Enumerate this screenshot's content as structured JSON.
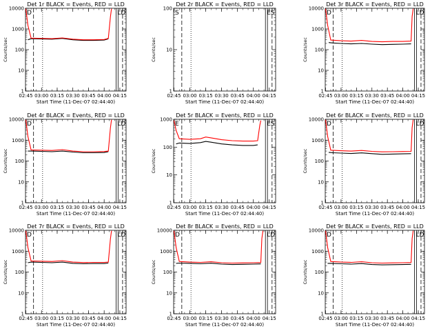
{
  "colors": {
    "events": "#000000",
    "lld": "#ff0000",
    "axes": "#000000",
    "background": "#ffffff"
  },
  "chart_data": [
    {
      "type": "line",
      "title": "Det 1r BLACK = Events, RED = LLD",
      "xlabel": "Start Time (11-Dec-07 02:44:40)",
      "ylabel": "Counts/sec",
      "xticks": [
        "02:45",
        "03:00",
        "03:15",
        "03:30",
        "03:45",
        "04:00",
        "04:15"
      ],
      "yticks": [
        "1",
        "10",
        "100",
        "1000",
        "10000"
      ],
      "y_log": true,
      "ylim": [
        1,
        10000
      ],
      "markers": {
        "left": "D",
        "right": "LD"
      },
      "series": [
        {
          "color": "#000000",
          "x": [
            "02:47",
            "02:50",
            "03:00",
            "03:10",
            "03:20",
            "03:30",
            "03:40",
            "03:50",
            "04:00",
            "04:04"
          ],
          "y": [
            300,
            340,
            330,
            320,
            350,
            300,
            280,
            280,
            290,
            330
          ]
        },
        {
          "color": "#ff0000",
          "x": [
            "02:45",
            "02:47",
            "02:50",
            "03:00",
            "03:10",
            "03:20",
            "03:30",
            "03:40",
            "03:50",
            "04:00",
            "04:04",
            "04:06",
            "04:07"
          ],
          "y": [
            9500,
            1500,
            360,
            350,
            340,
            370,
            320,
            300,
            300,
            310,
            350,
            4000,
            9500
          ]
        }
      ]
    },
    {
      "type": "line",
      "title": "Det 2r BLACK = Events, RED = LLD",
      "xlabel": "Start Time (11-Dec-07 02:44:40)",
      "ylabel": "Counts/sec",
      "xticks": [
        "02:45",
        "03:00",
        "03:15",
        "03:30",
        "03:45",
        "04:00",
        "04:15"
      ],
      "yticks": [
        "1",
        "10",
        "100"
      ],
      "y_log": true,
      "ylim": [
        1,
        100
      ],
      "markers": {
        "left": "S",
        "right": "ES"
      },
      "series": []
    },
    {
      "type": "line",
      "title": "Det 3r BLACK = Events, RED = LLD",
      "xlabel": "Start Time (11-Dec-07 02:44:40)",
      "ylabel": "Counts/sec",
      "xticks": [
        "02:45",
        "03:00",
        "03:15",
        "03:30",
        "03:45",
        "04:00",
        "04:15"
      ],
      "yticks": [
        "1",
        "10",
        "100",
        "1000",
        "10000"
      ],
      "y_log": true,
      "ylim": [
        1,
        10000
      ],
      "markers": {
        "left": "D",
        "right": "LD"
      },
      "series": [
        {
          "color": "#000000",
          "x": [
            "02:48",
            "02:52",
            "03:00",
            "03:10",
            "03:20",
            "03:30",
            "03:40",
            "03:50",
            "04:00",
            "04:08"
          ],
          "y": [
            220,
            210,
            200,
            190,
            200,
            185,
            175,
            180,
            185,
            190
          ]
        },
        {
          "color": "#ff0000",
          "x": [
            "02:45",
            "02:47",
            "02:50",
            "03:00",
            "03:10",
            "03:20",
            "03:30",
            "03:40",
            "03:50",
            "04:00",
            "04:08",
            "04:09",
            "04:10"
          ],
          "y": [
            9500,
            1500,
            290,
            270,
            260,
            280,
            250,
            240,
            250,
            250,
            260,
            4000,
            9500
          ]
        }
      ]
    },
    {
      "type": "line",
      "title": "Det 4r BLACK = Events, RED = LLD",
      "xlabel": "Start Time (11-Dec-07 02:44:40)",
      "ylabel": "Counts/sec",
      "xticks": [
        "02:45",
        "03:00",
        "03:15",
        "03:30",
        "03:45",
        "04:00",
        "04:15"
      ],
      "yticks": [
        "1",
        "10",
        "100",
        "1000",
        "10000"
      ],
      "y_log": true,
      "ylim": [
        1,
        10000
      ],
      "markers": {
        "left": "D",
        "right": "LD"
      },
      "series": [
        {
          "color": "#000000",
          "x": [
            "02:47",
            "02:50",
            "03:00",
            "03:10",
            "03:20",
            "03:30",
            "03:40",
            "03:50",
            "04:00",
            "04:04"
          ],
          "y": [
            300,
            300,
            290,
            280,
            300,
            270,
            250,
            250,
            255,
            280
          ]
        },
        {
          "color": "#ff0000",
          "x": [
            "02:45",
            "02:47",
            "02:50",
            "03:00",
            "03:10",
            "03:20",
            "03:30",
            "03:40",
            "03:50",
            "04:00",
            "04:04",
            "04:06",
            "04:07"
          ],
          "y": [
            9500,
            1500,
            340,
            330,
            320,
            350,
            300,
            280,
            280,
            285,
            300,
            4000,
            9500
          ]
        }
      ]
    },
    {
      "type": "line",
      "title": "Det 5r BLACK = Events, RED = LLD",
      "xlabel": "Start Time (11-Dec-07 02:44:40)",
      "ylabel": "Counts/sec",
      "xticks": [
        "02:45",
        "03:00",
        "03:15",
        "03:30",
        "03:45",
        "04:00",
        "04:15"
      ],
      "yticks": [
        "1",
        "10",
        "100",
        "1000"
      ],
      "y_log": true,
      "ylim": [
        1,
        1000
      ],
      "markers": {
        "left": "E",
        "right": "ES"
      },
      "series": [
        {
          "color": "#000000",
          "x": [
            "02:47",
            "02:50",
            "03:00",
            "03:10",
            "03:15",
            "03:20",
            "03:30",
            "03:40",
            "03:50",
            "04:00",
            "04:04"
          ],
          "y": [
            130,
            140,
            135,
            145,
            160,
            150,
            130,
            120,
            115,
            115,
            120
          ]
        },
        {
          "color": "#ff0000",
          "x": [
            "02:45",
            "02:47",
            "02:50",
            "03:00",
            "03:10",
            "03:15",
            "03:20",
            "03:30",
            "03:40",
            "03:50",
            "04:00",
            "04:04",
            "04:06",
            "04:07"
          ],
          "y": [
            900,
            400,
            200,
            190,
            200,
            230,
            215,
            185,
            170,
            165,
            165,
            170,
            600,
            900
          ]
        }
      ]
    },
    {
      "type": "line",
      "title": "Det 6r BLACK = Events, RED = LLD",
      "xlabel": "Start Time (11-Dec-07 02:44:40)",
      "ylabel": "Counts/sec",
      "xticks": [
        "02:45",
        "03:00",
        "03:15",
        "03:30",
        "03:45",
        "04:00",
        "04:15"
      ],
      "yticks": [
        "1",
        "10",
        "100",
        "1000",
        "10000"
      ],
      "y_log": true,
      "ylim": [
        1,
        10000
      ],
      "markers": {
        "left": "D",
        "right": "LD"
      },
      "series": [
        {
          "color": "#000000",
          "x": [
            "02:48",
            "02:52",
            "03:00",
            "03:10",
            "03:20",
            "03:30",
            "03:40",
            "03:50",
            "04:00",
            "04:08"
          ],
          "y": [
            260,
            250,
            240,
            230,
            245,
            225,
            210,
            215,
            220,
            225
          ]
        },
        {
          "color": "#ff0000",
          "x": [
            "02:45",
            "02:47",
            "02:50",
            "03:00",
            "03:10",
            "03:20",
            "03:30",
            "03:40",
            "03:50",
            "04:00",
            "04:08",
            "04:09",
            "04:10"
          ],
          "y": [
            9500,
            1500,
            330,
            310,
            300,
            320,
            290,
            275,
            280,
            285,
            290,
            4000,
            9500
          ]
        }
      ]
    },
    {
      "type": "line",
      "title": "Det 7r BLACK = Events, RED = LLD",
      "xlabel": "Start Time (11-Dec-07 02:44:40)",
      "ylabel": "Counts/sec",
      "xticks": [
        "02:45",
        "03:00",
        "03:15",
        "03:30",
        "03:45",
        "04:00",
        "04:15"
      ],
      "yticks": [
        "1",
        "10",
        "100",
        "1000",
        "10000"
      ],
      "y_log": true,
      "ylim": [
        1,
        10000
      ],
      "markers": {
        "left": "D",
        "right": "LD"
      },
      "series": [
        {
          "color": "#000000",
          "x": [
            "02:47",
            "02:50",
            "03:00",
            "03:10",
            "03:20",
            "03:30",
            "03:40",
            "03:50",
            "04:00",
            "04:04"
          ],
          "y": [
            280,
            300,
            290,
            280,
            300,
            260,
            250,
            255,
            255,
            270
          ]
        },
        {
          "color": "#ff0000",
          "x": [
            "02:45",
            "02:47",
            "02:50",
            "03:00",
            "03:10",
            "03:20",
            "03:30",
            "03:40",
            "03:50",
            "04:00",
            "04:04",
            "04:06",
            "04:07"
          ],
          "y": [
            9500,
            1500,
            340,
            330,
            320,
            350,
            300,
            285,
            290,
            290,
            300,
            4000,
            9500
          ]
        }
      ]
    },
    {
      "type": "line",
      "title": "Det 8r BLACK = Events, RED = LLD",
      "xlabel": "Start Time (11-Dec-07 02:44:40)",
      "ylabel": "Counts/sec",
      "xticks": [
        "02:45",
        "03:00",
        "03:15",
        "03:30",
        "03:45",
        "04:00",
        "04:15"
      ],
      "yticks": [
        "1",
        "10",
        "100",
        "1000",
        "10000"
      ],
      "y_log": true,
      "ylim": [
        1,
        10000
      ],
      "markers": {
        "left": "D",
        "right": "LD"
      },
      "series": [
        {
          "color": "#000000",
          "x": [
            "02:47",
            "02:50",
            "03:00",
            "03:10",
            "03:20",
            "03:30",
            "03:40",
            "03:50",
            "04:00",
            "04:07"
          ],
          "y": [
            260,
            270,
            260,
            250,
            265,
            240,
            230,
            235,
            240,
            245
          ]
        },
        {
          "color": "#ff0000",
          "x": [
            "02:45",
            "02:47",
            "02:50",
            "03:00",
            "03:10",
            "03:20",
            "03:30",
            "03:40",
            "03:50",
            "04:00",
            "04:07",
            "04:08",
            "04:09"
          ],
          "y": [
            9500,
            1500,
            320,
            300,
            290,
            310,
            280,
            270,
            275,
            280,
            285,
            4000,
            9500
          ]
        }
      ]
    },
    {
      "type": "line",
      "title": "Det 9r BLACK = Events, RED = LLD",
      "xlabel": "Start Time (11-Dec-07 02:44:40)",
      "ylabel": "Counts/sec",
      "xticks": [
        "02:45",
        "03:00",
        "03:15",
        "03:30",
        "03:45",
        "04:00",
        "04:15"
      ],
      "yticks": [
        "1",
        "10",
        "100",
        "1000",
        "10000"
      ],
      "y_log": true,
      "ylim": [
        1,
        10000
      ],
      "markers": {
        "left": "D",
        "right": "LD"
      },
      "series": [
        {
          "color": "#000000",
          "x": [
            "02:47",
            "02:50",
            "03:00",
            "03:10",
            "03:20",
            "03:30",
            "03:40",
            "03:50",
            "04:00",
            "04:08"
          ],
          "y": [
            260,
            260,
            250,
            240,
            255,
            230,
            220,
            225,
            230,
            235
          ]
        },
        {
          "color": "#ff0000",
          "x": [
            "02:45",
            "02:47",
            "02:50",
            "03:00",
            "03:10",
            "03:20",
            "03:30",
            "03:40",
            "03:50",
            "04:00",
            "04:08",
            "04:09",
            "04:10"
          ],
          "y": [
            9500,
            1500,
            320,
            300,
            290,
            310,
            280,
            270,
            275,
            280,
            285,
            4000,
            9500
          ]
        }
      ]
    }
  ]
}
